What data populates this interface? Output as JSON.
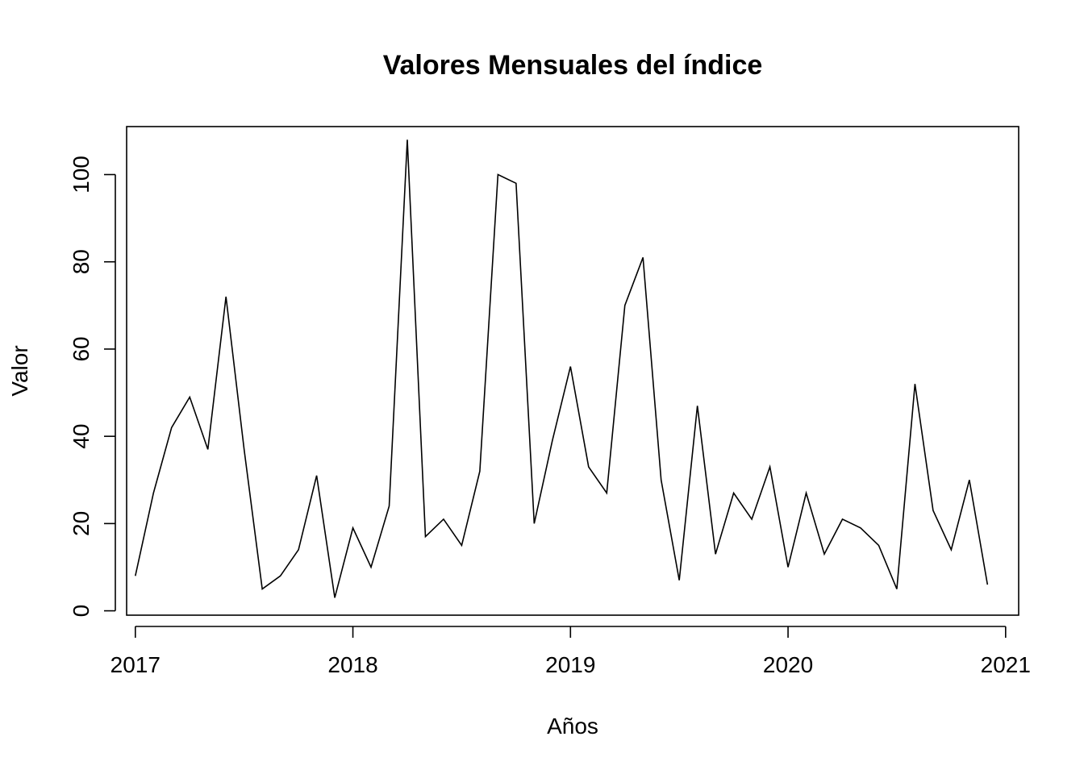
{
  "chart_data": {
    "type": "line",
    "title": "Valores Mensuales del índice",
    "xlabel": "Años",
    "ylabel": "Valor",
    "x_start": 2017,
    "x_step": 0.0833333333,
    "xlim": [
      2016.96,
      2021.06
    ],
    "ylim": [
      -1,
      111
    ],
    "x_ticks": [
      2017,
      2018,
      2019,
      2020,
      2021
    ],
    "x_tick_labels": [
      "2017",
      "2018",
      "2019",
      "2020",
      "2021"
    ],
    "y_ticks": [
      0,
      20,
      40,
      60,
      80,
      100
    ],
    "y_tick_labels": [
      "0",
      "20",
      "40",
      "60",
      "80",
      "100"
    ],
    "grid": false,
    "series": [
      {
        "values": [
          8,
          27,
          42,
          49,
          37,
          72,
          37,
          5,
          8,
          14,
          31,
          3,
          19,
          10,
          24,
          108,
          17,
          21,
          15,
          32,
          100,
          98,
          20,
          39,
          56,
          33,
          27,
          70,
          81,
          30,
          7,
          47,
          13,
          27,
          21,
          33,
          10,
          27,
          13,
          21,
          19,
          15,
          5,
          52,
          23,
          14,
          30,
          6
        ]
      }
    ]
  }
}
